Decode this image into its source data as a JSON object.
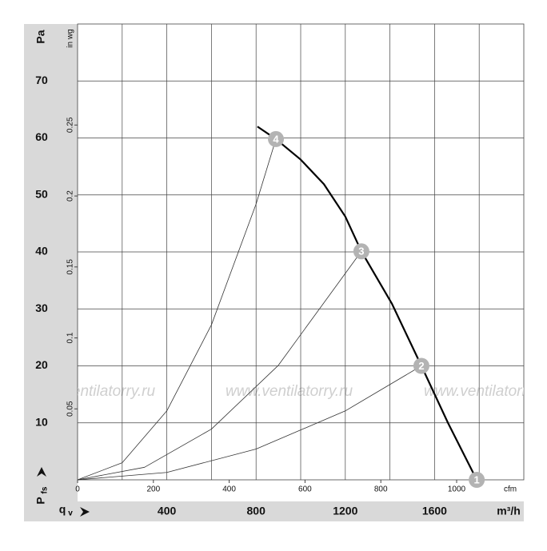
{
  "chart_data": {
    "type": "line",
    "y_label": "Pa",
    "y2_label": "in wg",
    "x_label": "m³/h",
    "x2_label": "cfm",
    "y_symbol": "P",
    "y_subscript": "fs",
    "x_symbol": "q",
    "x_subscript": "v",
    "watermark": "www.ventilatorry.ru",
    "xlim": [
      0,
      2000
    ],
    "xticks": [
      400,
      800,
      1200,
      1600
    ],
    "x_minor_ticks": [
      200,
      600,
      1000,
      1400,
      1800
    ],
    "ylim": [
      0,
      80
    ],
    "yticks": [
      10,
      20,
      30,
      40,
      50,
      60,
      70
    ],
    "x2lim": [
      0,
      1177.2
    ],
    "x2ticks": [
      0,
      200,
      400,
      600,
      800,
      1000
    ],
    "y2lim": [
      0,
      0.3212
    ],
    "y2ticks": [
      0.05,
      0.1,
      0.15,
      0.2,
      0.25
    ],
    "grid": true,
    "series": [
      {
        "color": "#000000",
        "width": 2.2,
        "x": [
          806,
          889,
          1000,
          1104,
          1200,
          1272,
          1409,
          1541,
          1660,
          1789
        ],
        "values": [
          62.0,
          59.8,
          56.2,
          51.9,
          46.2,
          40.1,
          30.9,
          20.0,
          10.0,
          0
        ]
      },
      {
        "color": "#333333",
        "width": 0.8,
        "x": [
          0,
          200,
          400,
          600,
          800,
          889
        ],
        "values": [
          0,
          3.0,
          12.1,
          27.2,
          48.4,
          59.8
        ]
      },
      {
        "color": "#333333",
        "width": 0.8,
        "x": [
          0,
          300,
          600,
          900,
          1272
        ],
        "values": [
          0,
          2.2,
          8.9,
          20.1,
          40.1
        ]
      },
      {
        "color": "#333333",
        "width": 0.8,
        "x": [
          0,
          400,
          800,
          1200,
          1541
        ],
        "values": [
          0,
          1.3,
          5.4,
          12.1,
          20.0
        ]
      }
    ],
    "operating_points": {
      "color": "#b3b3b3",
      "labels": [
        "1",
        "2",
        "3",
        "4"
      ],
      "x": [
        1789,
        1541,
        1272,
        889
      ],
      "values": [
        0,
        20.0,
        40.1,
        59.8
      ]
    }
  }
}
